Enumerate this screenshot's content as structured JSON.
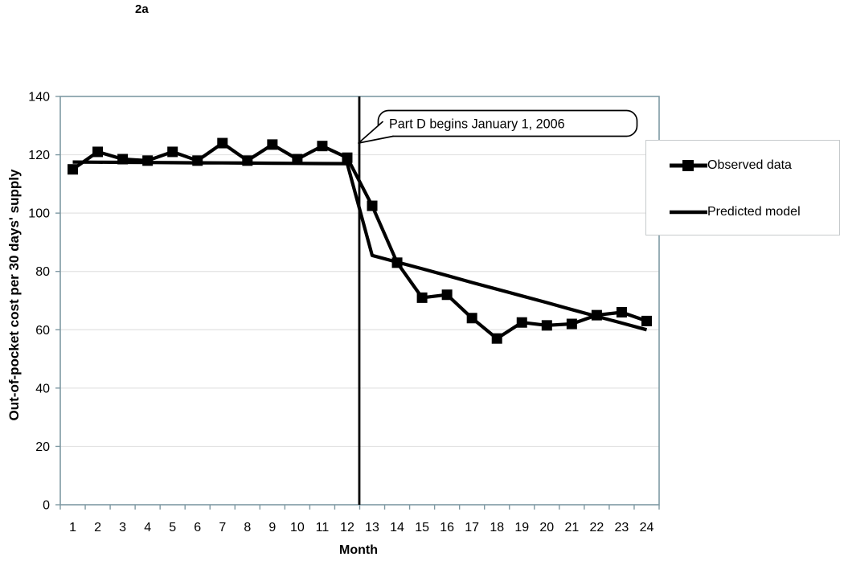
{
  "figure_label": "2a",
  "chart_data": {
    "type": "line",
    "title": "2a",
    "xlabel": "Month",
    "ylabel": "Out-of-pocket cost per 30 days' supply",
    "x": [
      1,
      2,
      3,
      4,
      5,
      6,
      7,
      8,
      9,
      10,
      11,
      12,
      13,
      14,
      15,
      16,
      17,
      18,
      19,
      20,
      21,
      22,
      23,
      24
    ],
    "ylim": [
      0,
      140
    ],
    "yticks": [
      0,
      20,
      40,
      60,
      80,
      100,
      120,
      140
    ],
    "grid": "horizontal-light",
    "legend_position": "right",
    "series": [
      {
        "name": "Observed data",
        "marker": "square",
        "color": "#000000",
        "values": [
          115,
          121,
          118.5,
          118,
          121,
          118,
          124,
          118,
          123.5,
          118.5,
          123,
          119,
          102.5,
          83,
          71,
          72,
          64,
          57,
          62.5,
          61.5,
          62,
          65,
          66,
          63
        ]
      },
      {
        "name": "Predicted model",
        "marker": "none",
        "color": "#000000",
        "values": [
          117.5,
          117.45,
          117.4,
          117.35,
          117.3,
          117.25,
          117.2,
          117.15,
          117.1,
          117.05,
          117.0,
          116.95,
          85.5,
          83.2,
          80.9,
          78.6,
          76.2,
          73.9,
          71.6,
          69.3,
          66.9,
          64.6,
          62.3,
          60
        ]
      }
    ],
    "intervention_line_x": 12.5,
    "annotation": {
      "text": "Part D begins January 1, 2006",
      "points_to_x": 12.5
    }
  },
  "colors": {
    "series": "#000000",
    "axis_line": "#7f99a3",
    "gridline": "#e3e3e3",
    "background": "#ffffff",
    "legend_border": "#c6cacc"
  }
}
